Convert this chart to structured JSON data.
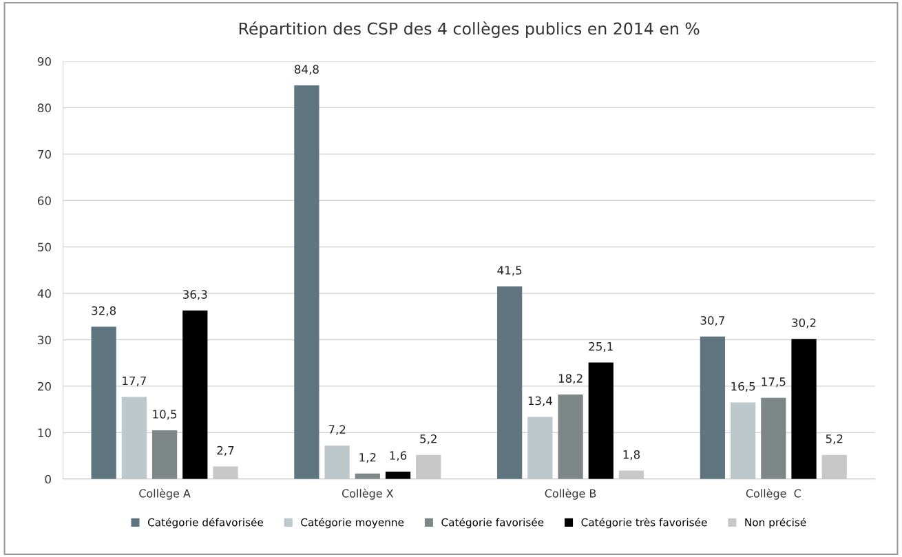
{
  "chart_data": {
    "type": "bar",
    "title": "Répartition des CSP des 4 collèges publics en 2014 en %",
    "categories": [
      "Collège A",
      "Collège X",
      "Collège B",
      "Collège  C"
    ],
    "series": [
      {
        "name": "Catégorie défavorisée",
        "color": "#5f7680",
        "values": [
          32.8,
          84.8,
          41.5,
          30.7
        ],
        "value_labels": [
          "32,8",
          "84,8",
          "41,5",
          "30,7"
        ]
      },
      {
        "name": "Catégorie moyenne",
        "color": "#bcc8cc",
        "values": [
          17.7,
          7.2,
          13.4,
          16.5
        ],
        "value_labels": [
          "17,7",
          "7,2",
          "13,4",
          "16,5"
        ]
      },
      {
        "name": "Catégorie favorisée",
        "color": "#7d8787",
        "values": [
          10.5,
          1.2,
          18.2,
          17.5
        ],
        "value_labels": [
          "10,5",
          "1,2",
          "18,2",
          "17,5"
        ]
      },
      {
        "name": "Catégorie très favorisée",
        "color": "#000000",
        "values": [
          36.3,
          1.6,
          25.1,
          30.2
        ],
        "value_labels": [
          "36,3",
          "1,6",
          "25,1",
          "30,2"
        ]
      },
      {
        "name": "Non précisé",
        "color": "#c8c8c8",
        "values": [
          2.7,
          5.2,
          1.8,
          5.2
        ],
        "value_labels": [
          "2,7",
          "5,2",
          "1,8",
          "5,2"
        ]
      }
    ],
    "ylim": [
      0,
      90
    ],
    "yticks": [
      0,
      10,
      20,
      30,
      40,
      50,
      60,
      70,
      80,
      90
    ],
    "grid": "y",
    "legend": "bottom"
  }
}
